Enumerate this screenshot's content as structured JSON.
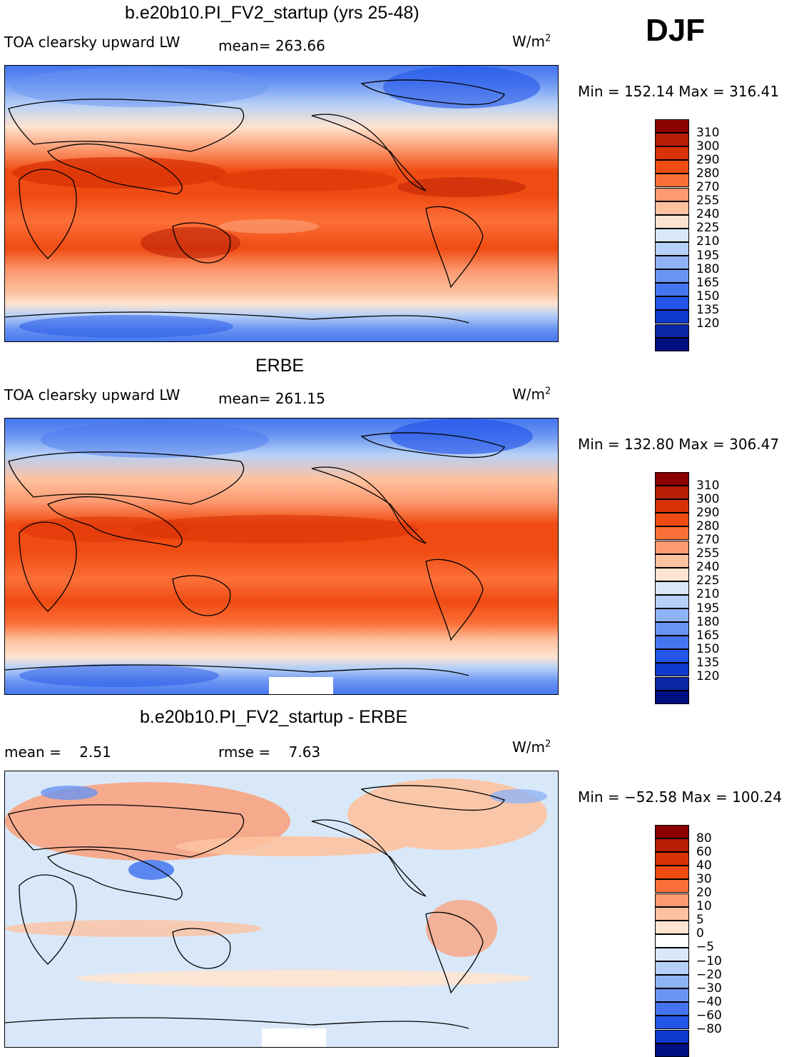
{
  "season": "DJF",
  "units": "W/m",
  "units_exp": "2",
  "panels": [
    {
      "title": "b.e20b10.PI_FV2_startup (yrs 25-48)",
      "left_label": "TOA clearsky upward LW",
      "mean_label": "mean= 263.66",
      "minmax": "Min = 152.14 Max = 316.41"
    },
    {
      "title": "ERBE",
      "left_label": "TOA clearsky upward LW",
      "mean_label": "mean= 261.15",
      "minmax": "Min = 132.80 Max = 306.47"
    },
    {
      "title": "b.e20b10.PI_FV2_startup - ERBE",
      "left_label": "mean =    2.51",
      "mean_label": "rmse =    7.63",
      "minmax": "Min = −52.58 Max = 100.24"
    }
  ],
  "colorbar_abs": {
    "colors": [
      "#8b0000",
      "#b71e06",
      "#d93206",
      "#f04b12",
      "#fb7038",
      "#fc9a70",
      "#fdc2a0",
      "#fee4d0",
      "#d9e8f8",
      "#b6d0f7",
      "#8fb3f5",
      "#6a94f2",
      "#4475ee",
      "#2255e8",
      "#0f38cc",
      "#0a25a6",
      "#001080"
    ],
    "ticks": [
      "310",
      "300",
      "290",
      "280",
      "270",
      "255",
      "240",
      "225",
      "210",
      "195",
      "180",
      "165",
      "150",
      "135",
      "120"
    ]
  },
  "colorbar_diff": {
    "colors": [
      "#8b0000",
      "#b71e06",
      "#d93206",
      "#f04b12",
      "#fb7038",
      "#fc9a70",
      "#fdc2a0",
      "#fee4d0",
      "#ffffff",
      "#d9e8f8",
      "#b6d0f7",
      "#8fb3f5",
      "#6a94f2",
      "#4475ee",
      "#2255e8",
      "#0f38cc",
      "#001080"
    ],
    "ticks": [
      "80",
      "60",
      "40",
      "30",
      "20",
      "10",
      "5",
      "0",
      "−5",
      "−10",
      "−20",
      "−30",
      "−40",
      "−60",
      "−80"
    ]
  },
  "chart_data": [
    {
      "type": "heatmap",
      "title": "b.e20b10.PI_FV2_startup (yrs 25-48)",
      "subtitle": "TOA clearsky upward LW",
      "season": "DJF",
      "units": "W/m2",
      "mean": 263.66,
      "min": 152.14,
      "max": 316.41,
      "contour_levels": [
        120,
        135,
        150,
        165,
        180,
        195,
        210,
        225,
        240,
        255,
        270,
        280,
        290,
        300,
        310
      ]
    },
    {
      "type": "heatmap",
      "title": "ERBE",
      "subtitle": "TOA clearsky upward LW",
      "season": "DJF",
      "units": "W/m2",
      "mean": 261.15,
      "min": 132.8,
      "max": 306.47,
      "contour_levels": [
        120,
        135,
        150,
        165,
        180,
        195,
        210,
        225,
        240,
        255,
        270,
        280,
        290,
        300,
        310
      ]
    },
    {
      "type": "heatmap",
      "title": "b.e20b10.PI_FV2_startup - ERBE",
      "season": "DJF",
      "units": "W/m2",
      "mean": 2.51,
      "rmse": 7.63,
      "min": -52.58,
      "max": 100.24,
      "contour_levels": [
        -80,
        -60,
        -40,
        -30,
        -20,
        -10,
        -5,
        0,
        5,
        10,
        20,
        30,
        40,
        60,
        80
      ]
    }
  ]
}
